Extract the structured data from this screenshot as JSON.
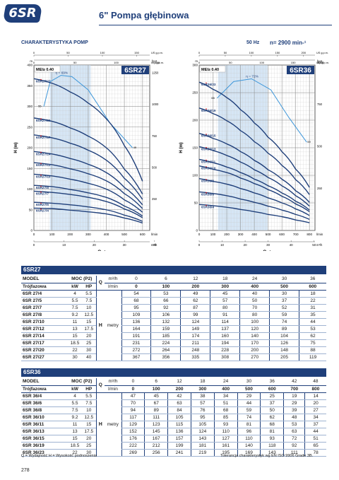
{
  "header": {
    "logo": "6SR",
    "title": "6\" Pompa głębinowa"
  },
  "section": {
    "title": "CHARAKTERYSTYKA POMP",
    "freq": "50 Hz",
    "speed": "n= 2900 min-¹"
  },
  "chart_data": [
    {
      "type": "line",
      "title": "6SR27",
      "mei": "MEI≥ 0.40",
      "ylabel": "H (m)",
      "xlabel": "Q",
      "y_unit": "m",
      "x_unit": "l/min",
      "x2_unit": "m³/h",
      "top_unit": "US g.p.m.",
      "top_unit2": "Imp g.p.m.",
      "right_unit": "feet",
      "x_ticks": [
        "0",
        "100",
        "200",
        "300",
        "400",
        "500",
        "600"
      ],
      "y_ticks": [
        "0",
        "50",
        "100",
        "150",
        "200",
        "250",
        "300",
        "350",
        "400"
      ],
      "x2_ticks": [
        "0",
        "10",
        "20",
        "30",
        "40"
      ],
      "top_ticks": [
        "0",
        "50",
        "100",
        "150"
      ],
      "top_ticks2": [
        "0",
        "50",
        "100",
        "150"
      ],
      "right_ticks": [
        "250",
        "500",
        "750",
        "1000",
        "1250"
      ],
      "xlim": [
        0,
        640
      ],
      "ylim": [
        0,
        400
      ],
      "eff_label": "η = 69%",
      "range_left": 55,
      "range_right": 49,
      "series": [
        {
          "name": "6SR27/27",
          "values": [
            367,
            356,
            335,
            308,
            270,
            205,
            119
          ]
        },
        {
          "name": "6SR27/20",
          "values": [
            272,
            264,
            248,
            228,
            200,
            148,
            88
          ]
        },
        {
          "name": "6SR27/17",
          "values": [
            231,
            224,
            211,
            194,
            170,
            126,
            75
          ]
        },
        {
          "name": "6SR27/14",
          "values": [
            191,
            185,
            174,
            160,
            140,
            104,
            62
          ]
        },
        {
          "name": "6SR27/12",
          "values": [
            164,
            159,
            149,
            137,
            120,
            89,
            53
          ]
        },
        {
          "name": "6SR27/10",
          "values": [
            136,
            132,
            124,
            114,
            100,
            74,
            44
          ]
        },
        {
          "name": "6SR27/8",
          "values": [
            109,
            106,
            99,
            91,
            80,
            59,
            35
          ]
        },
        {
          "name": "6SR27/7",
          "values": [
            95,
            92,
            87,
            80,
            70,
            52,
            31
          ]
        },
        {
          "name": "6SR27/5",
          "values": [
            68,
            66,
            62,
            57,
            50,
            37,
            22
          ]
        },
        {
          "name": "6SR27/4",
          "values": [
            54,
            53,
            49,
            45,
            40,
            30,
            18
          ]
        }
      ],
      "x": [
        0,
        100,
        200,
        300,
        400,
        500,
        600
      ],
      "eff_curve": [
        [
          55,
          300
        ],
        [
          90,
          360
        ],
        [
          150,
          375
        ],
        [
          210,
          372
        ],
        [
          300,
          340
        ],
        [
          420,
          260
        ],
        [
          545,
          200
        ]
      ]
    },
    {
      "type": "line",
      "title": "6SR36",
      "mei": "MEI≥ 0.40",
      "ylabel": "H (m)",
      "xlabel": "Q",
      "y_unit": "m",
      "x_unit": "l/min",
      "x2_unit": "m³/h",
      "top_unit": "US g.p.m.",
      "top_unit2": "Imp g.p.m.",
      "right_unit": "feet",
      "x_ticks": [
        "0",
        "100",
        "200",
        "300",
        "400",
        "500",
        "600",
        "700",
        "800"
      ],
      "y_ticks": [
        "0",
        "50",
        "100",
        "150",
        "200",
        "250",
        "300"
      ],
      "x2_ticks": [
        "0",
        "10",
        "20",
        "30",
        "40",
        "50"
      ],
      "top_ticks": [
        "0",
        "50",
        "100",
        "150",
        "200"
      ],
      "top_ticks2": [
        "0",
        "50",
        "100",
        "150"
      ],
      "right_ticks": [
        "250",
        "500",
        "750",
        "1000"
      ],
      "xlim": [
        0,
        840
      ],
      "ylim": [
        0,
        300
      ],
      "eff_label": "η = 72%",
      "range_left": 65,
      "range_right": 59,
      "series": [
        {
          "name": "6SR36/23",
          "values": [
            269,
            256,
            241,
            219,
            195,
            169,
            143,
            111,
            78
          ]
        },
        {
          "name": "6SR36/19",
          "values": [
            222,
            212,
            199,
            181,
            161,
            140,
            118,
            92,
            65
          ]
        },
        {
          "name": "6SR36/15",
          "values": [
            176,
            167,
            157,
            143,
            127,
            110,
            93,
            72,
            51
          ]
        },
        {
          "name": "6SR36/13",
          "values": [
            152,
            145,
            136,
            124,
            110,
            96,
            81,
            63,
            44
          ]
        },
        {
          "name": "6SR36/11",
          "values": [
            129,
            123,
            115,
            105,
            93,
            81,
            68,
            53,
            37
          ]
        },
        {
          "name": "6SR36/10",
          "values": [
            117,
            111,
            105,
            95,
            85,
            74,
            62,
            48,
            34
          ]
        },
        {
          "name": "6SR36/8",
          "values": [
            94,
            89,
            84,
            76,
            68,
            59,
            50,
            39,
            27
          ]
        },
        {
          "name": "6SR36/6",
          "values": [
            70,
            67,
            63,
            57,
            51,
            44,
            37,
            29,
            20
          ]
        },
        {
          "name": "6SR36/4",
          "values": [
            47,
            45,
            42,
            38,
            34,
            29,
            25,
            19,
            14
          ]
        }
      ],
      "x": [
        0,
        100,
        200,
        300,
        400,
        500,
        600,
        700,
        800
      ],
      "eff_curve": [
        [
          130,
          240
        ],
        [
          250,
          270
        ],
        [
          380,
          275
        ],
        [
          520,
          255
        ],
        [
          650,
          205
        ],
        [
          780,
          160
        ]
      ]
    }
  ],
  "table1": {
    "title": "6SR27",
    "h_model": "MODEL",
    "h_moc": "MOC (P2)",
    "h_q": "Q",
    "h_m3h": "m³/h",
    "h_lmin": "l/min",
    "h_tr": "Trójfazowa",
    "h_kw": "kW",
    "h_hp": "HP",
    "h_metry": "metry",
    "h_h": "H",
    "q_m3h": [
      "0",
      "6",
      "12",
      "18",
      "24",
      "30",
      "36"
    ],
    "q_lmin": [
      "0",
      "100",
      "200",
      "300",
      "400",
      "500",
      "600"
    ],
    "rows": [
      [
        "6SR 27/4",
        "4",
        "5.5",
        [
          "54",
          "53",
          "49",
          "45",
          "40",
          "30",
          "18"
        ]
      ],
      [
        "6SR 27/5",
        "5.5",
        "7.5",
        [
          "68",
          "66",
          "62",
          "57",
          "50",
          "37",
          "22"
        ]
      ],
      [
        "6SR 27/7",
        "7.5",
        "10",
        [
          "95",
          "92",
          "87",
          "80",
          "70",
          "52",
          "31"
        ]
      ],
      [
        "6SR 27/8",
        "9.2",
        "12.5",
        [
          "109",
          "106",
          "99",
          "91",
          "80",
          "59",
          "35"
        ]
      ],
      [
        "6SR 27/10",
        "11",
        "15",
        [
          "136",
          "132",
          "124",
          "114",
          "100",
          "74",
          "44"
        ]
      ],
      [
        "6SR 27/12",
        "13",
        "17.5",
        [
          "164",
          "159",
          "149",
          "137",
          "120",
          "89",
          "53"
        ]
      ],
      [
        "6SR 27/14",
        "15",
        "20",
        [
          "191",
          "185",
          "174",
          "160",
          "140",
          "104",
          "62"
        ]
      ],
      [
        "6SR 27/17",
        "18.5",
        "25",
        [
          "231",
          "224",
          "211",
          "194",
          "170",
          "126",
          "75"
        ]
      ],
      [
        "6SR 27/20",
        "22",
        "30",
        [
          "272",
          "264",
          "248",
          "228",
          "200",
          "148",
          "88"
        ]
      ],
      [
        "6SR 27/27",
        "30",
        "40",
        [
          "367",
          "356",
          "335",
          "308",
          "270",
          "205",
          "119"
        ]
      ]
    ]
  },
  "table2": {
    "title": "6SR36",
    "h_model": "MODEL",
    "h_moc": "MOC (P2)",
    "h_q": "Q",
    "h_m3h": "m³/h",
    "h_lmin": "l/min",
    "h_tr": "Trójfazowa",
    "h_kw": "kW",
    "h_hp": "HP",
    "h_metry": "metry",
    "h_h": "H",
    "q_m3h": [
      "0",
      "6",
      "12",
      "18",
      "24",
      "30",
      "36",
      "42",
      "48"
    ],
    "q_lmin": [
      "0",
      "100",
      "200",
      "300",
      "400",
      "500",
      "600",
      "700",
      "800"
    ],
    "rows": [
      [
        "6SR 36/4",
        "4",
        "5.5",
        [
          "47",
          "45",
          "42",
          "38",
          "34",
          "29",
          "25",
          "19",
          "14"
        ]
      ],
      [
        "6SR 36/6",
        "5.5",
        "7.5",
        [
          "70",
          "67",
          "63",
          "57",
          "51",
          "44",
          "37",
          "29",
          "20"
        ]
      ],
      [
        "6SR 36/8",
        "7.5",
        "10",
        [
          "94",
          "89",
          "84",
          "76",
          "68",
          "59",
          "50",
          "39",
          "27"
        ]
      ],
      [
        "6SR 36/10",
        "9.2",
        "12.5",
        [
          "117",
          "111",
          "105",
          "95",
          "85",
          "74",
          "62",
          "48",
          "34"
        ]
      ],
      [
        "6SR 36/11",
        "11",
        "15",
        [
          "129",
          "123",
          "115",
          "105",
          "93",
          "81",
          "68",
          "53",
          "37"
        ]
      ],
      [
        "6SR 36/13",
        "13",
        "17.5",
        [
          "152",
          "145",
          "136",
          "124",
          "110",
          "96",
          "81",
          "63",
          "44"
        ]
      ],
      [
        "6SR 36/15",
        "15",
        "20",
        [
          "176",
          "167",
          "157",
          "143",
          "127",
          "110",
          "93",
          "72",
          "51"
        ]
      ],
      [
        "6SR 36/19",
        "18.5",
        "25",
        [
          "222",
          "212",
          "199",
          "181",
          "161",
          "140",
          "118",
          "92",
          "65"
        ]
      ],
      [
        "6SR 36/23",
        "22",
        "30",
        [
          "269",
          "256",
          "241",
          "219",
          "195",
          "169",
          "143",
          "111",
          "78"
        ]
      ]
    ]
  },
  "footer": {
    "legend": "Q = Wydajność     H = Wysokość podnoszenia",
    "tolerance": "Tolerancja charakterystyk wg EN ISO 9906 Grade 3B.",
    "page": "278"
  },
  "colors": {
    "curve": "#1f3f7a",
    "eff": "#3d96d9",
    "band": "#d6e6f5",
    "title_bg": "#1f3f7a"
  }
}
